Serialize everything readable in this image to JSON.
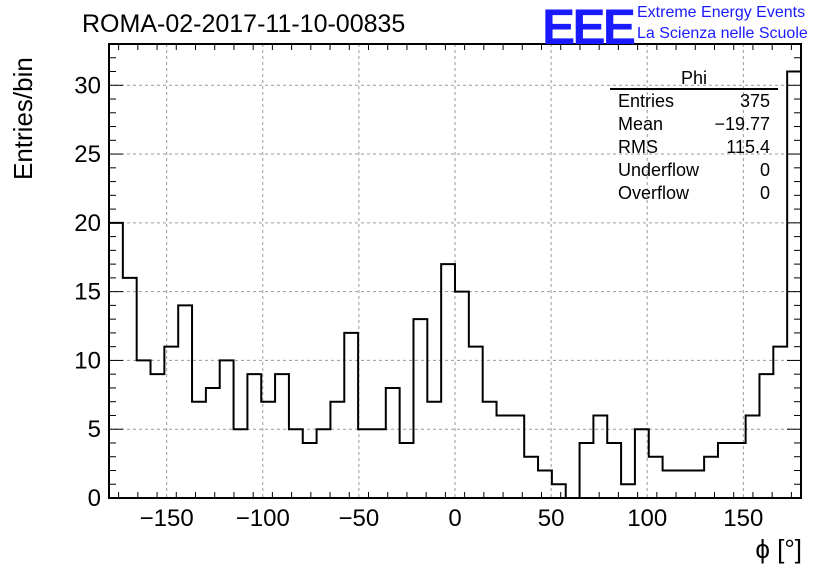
{
  "run_title": "ROMA-02-2017-11-10-00835",
  "logo": {
    "text": "EEE",
    "line1": "Extreme Energy Events",
    "line2": "La Scienza nelle Scuole",
    "color": "#1a1aff"
  },
  "stats_box": {
    "title": "Phi",
    "rows": [
      {
        "label": "Entries",
        "value": "375"
      },
      {
        "label": "Mean",
        "value": "−19.77"
      },
      {
        "label": "RMS",
        "value": "115.4"
      },
      {
        "label": "Underflow",
        "value": "0"
      },
      {
        "label": "Overflow",
        "value": "0"
      }
    ]
  },
  "chart_data": {
    "type": "histogram",
    "ylabel": "Entries/bin",
    "xlabel": "ϕ [°]",
    "xlim": [
      -180,
      180
    ],
    "ylim": [
      0,
      33
    ],
    "xticks": [
      -150,
      -100,
      -50,
      0,
      50,
      100,
      150
    ],
    "xtick_labels": [
      "−150",
      "−100",
      "−50",
      "0",
      "50",
      "100",
      "150"
    ],
    "yticks": [
      0,
      5,
      10,
      15,
      20,
      25,
      30
    ],
    "ytick_labels": [
      "0",
      "5",
      "10",
      "15",
      "20",
      "25",
      "30"
    ],
    "grid": true,
    "bin_width": 7.2,
    "counts": [
      20,
      16,
      10,
      9,
      11,
      14,
      7,
      8,
      10,
      5,
      9,
      7,
      9,
      5,
      4,
      5,
      7,
      12,
      5,
      5,
      8,
      4,
      13,
      7,
      17,
      15,
      11,
      7,
      6,
      6,
      3,
      2,
      1,
      0,
      4,
      6,
      4,
      1,
      5,
      3,
      2,
      2,
      2,
      3,
      4,
      4,
      6,
      9,
      11,
      31
    ],
    "line_color": "#000000",
    "grid_color": "#9a9a9a"
  }
}
